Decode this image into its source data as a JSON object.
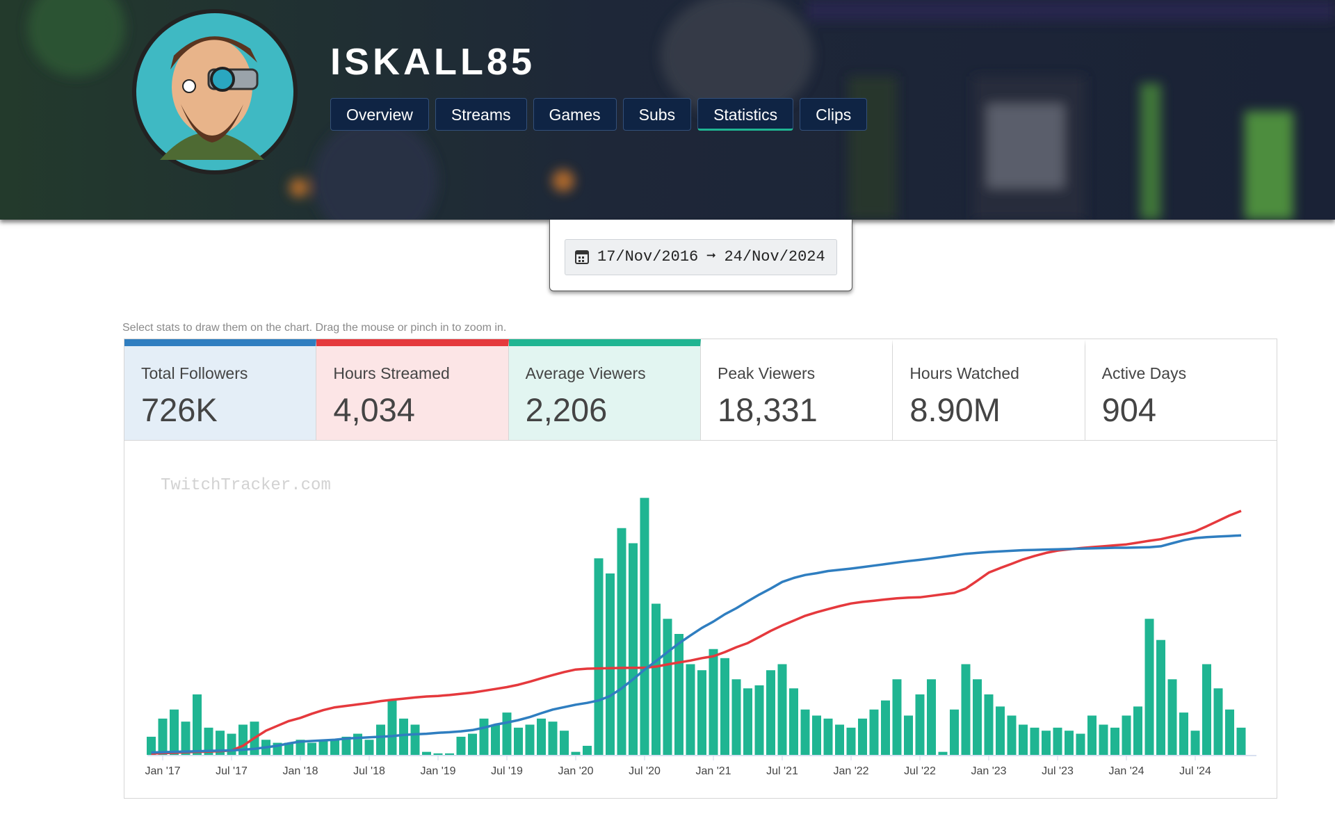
{
  "header": {
    "title": "ISKALL85",
    "tabs": [
      "Overview",
      "Streams",
      "Games",
      "Subs",
      "Statistics",
      "Clips"
    ],
    "active_tab": 4
  },
  "date_range": {
    "start": "17/Nov/2016",
    "arrow": "➞",
    "end": "24/Nov/2024"
  },
  "hint": "Select stats to draw them on the chart. Drag the mouse or pinch in to zoom in.",
  "stats": [
    {
      "label": "Total Followers",
      "value": "726K",
      "color": "#2f7ec0"
    },
    {
      "label": "Hours Streamed",
      "value": "4,034",
      "color": "#e5393d"
    },
    {
      "label": "Average Viewers",
      "value": "2,206",
      "color": "#1fb592"
    },
    {
      "label": "Peak Viewers",
      "value": "18,331"
    },
    {
      "label": "Hours Watched",
      "value": "8.90M"
    },
    {
      "label": "Active Days",
      "value": "904"
    }
  ],
  "chart_data": {
    "type": "combo",
    "watermark": "TwitchTracker.com",
    "x": [
      "2016-12",
      "2017-01",
      "2017-02",
      "2017-03",
      "2017-04",
      "2017-05",
      "2017-06",
      "2017-07",
      "2017-08",
      "2017-09",
      "2017-10",
      "2017-11",
      "2017-12",
      "2018-01",
      "2018-02",
      "2018-03",
      "2018-04",
      "2018-05",
      "2018-06",
      "2018-07",
      "2018-08",
      "2018-09",
      "2018-10",
      "2018-11",
      "2018-12",
      "2019-01",
      "2019-02",
      "2019-03",
      "2019-04",
      "2019-05",
      "2019-06",
      "2019-07",
      "2019-08",
      "2019-09",
      "2019-10",
      "2019-11",
      "2019-12",
      "2020-01",
      "2020-02",
      "2020-03",
      "2020-04",
      "2020-05",
      "2020-06",
      "2020-07",
      "2020-08",
      "2020-09",
      "2020-10",
      "2020-11",
      "2020-12",
      "2021-01",
      "2021-02",
      "2021-03",
      "2021-04",
      "2021-05",
      "2021-06",
      "2021-07",
      "2021-08",
      "2021-09",
      "2021-10",
      "2021-11",
      "2021-12",
      "2022-01",
      "2022-02",
      "2022-03",
      "2022-04",
      "2022-05",
      "2022-06",
      "2022-07",
      "2022-08",
      "2022-09",
      "2022-10",
      "2022-11",
      "2022-12",
      "2023-01",
      "2023-02",
      "2023-03",
      "2023-04",
      "2023-05",
      "2023-06",
      "2023-07",
      "2023-08",
      "2023-09",
      "2023-10",
      "2023-11",
      "2023-12",
      "2024-01",
      "2024-02",
      "2024-03",
      "2024-04",
      "2024-05",
      "2024-06",
      "2024-07",
      "2024-08",
      "2024-09",
      "2024-10",
      "2024-11"
    ],
    "xticks": [
      {
        "value": "2017-01",
        "label": "Jan '17"
      },
      {
        "value": "2017-07",
        "label": "Jul '17"
      },
      {
        "value": "2018-01",
        "label": "Jan '18"
      },
      {
        "value": "2018-07",
        "label": "Jul '18"
      },
      {
        "value": "2019-01",
        "label": "Jan '19"
      },
      {
        "value": "2019-07",
        "label": "Jul '19"
      },
      {
        "value": "2020-01",
        "label": "Jan '20"
      },
      {
        "value": "2020-07",
        "label": "Jul '20"
      },
      {
        "value": "2021-01",
        "label": "Jan '21"
      },
      {
        "value": "2021-07",
        "label": "Jul '21"
      },
      {
        "value": "2022-01",
        "label": "Jan '22"
      },
      {
        "value": "2022-07",
        "label": "Jul '22"
      },
      {
        "value": "2023-01",
        "label": "Jan '23"
      },
      {
        "value": "2023-07",
        "label": "Jul '23"
      },
      {
        "value": "2024-01",
        "label": "Jan '24"
      },
      {
        "value": "2024-07",
        "label": "Jul '24"
      }
    ],
    "series": [
      {
        "name": "Average Viewers",
        "type": "bar",
        "color": "#1fb592",
        "ylim": [
          0,
          10000
        ],
        "values": [
          600,
          1200,
          1500,
          1100,
          2000,
          900,
          800,
          700,
          1000,
          1100,
          500,
          400,
          400,
          500,
          400,
          450,
          500,
          600,
          700,
          500,
          1000,
          1800,
          1200,
          1000,
          100,
          50,
          50,
          600,
          700,
          1200,
          1000,
          1400,
          900,
          1000,
          1200,
          1100,
          800,
          100,
          300,
          6500,
          6000,
          7500,
          7000,
          8500,
          5000,
          4500,
          4000,
          3000,
          2800,
          3500,
          3200,
          2500,
          2200,
          2300,
          2800,
          3000,
          2200,
          1500,
          1300,
          1200,
          1000,
          900,
          1200,
          1500,
          1800,
          2500,
          1300,
          2000,
          2500,
          100,
          1500,
          3000,
          2500,
          2000,
          1600,
          1300,
          1000,
          900,
          800,
          900,
          800,
          700,
          1300,
          1000,
          900,
          1300,
          1600,
          4500,
          3800,
          2500,
          1400,
          800,
          3000,
          2200,
          1500,
          900
        ]
      },
      {
        "name": "Hours Streamed",
        "type": "line",
        "color": "#e5393d",
        "ylim": [
          0,
          5000
        ],
        "values": [
          20,
          30,
          35,
          45,
          50,
          55,
          62,
          73,
          150,
          280,
          400,
          480,
          560,
          611,
          680,
          740,
          786,
          810,
          835,
          859,
          890,
          910,
          930,
          950,
          965,
          975,
          990,
          1010,
          1030,
          1060,
          1090,
          1121,
          1160,
          1210,
          1267,
          1320,
          1370,
          1412,
          1425,
          1430,
          1435,
          1438,
          1440,
          1441,
          1460,
          1495,
          1529,
          1560,
          1600,
          1631,
          1700,
          1780,
          1849,
          1950,
          2050,
          2140,
          2220,
          2300,
          2359,
          2410,
          2460,
          2504,
          2530,
          2550,
          2570,
          2590,
          2600,
          2606,
          2630,
          2655,
          2679,
          2750,
          2880,
          3014,
          3090,
          3160,
          3232,
          3290,
          3340,
          3378,
          3400,
          3420,
          3436,
          3450,
          3465,
          3480,
          3510,
          3540,
          3567,
          3610,
          3650,
          3698,
          3780,
          3870,
          3960,
          4034
        ]
      },
      {
        "name": "Total Followers",
        "type": "line",
        "color": "#2f7ec0",
        "ylim": [
          0,
          1000
        ],
        "values": [
          8,
          9,
          10,
          11,
          12,
          13,
          14,
          15,
          17,
          20,
          25,
          30,
          38,
          44,
          46,
          48,
          50,
          54,
          56,
          58,
          60,
          62,
          66,
          68,
          70,
          73,
          75,
          78,
          82,
          90,
          100,
          107,
          115,
          125,
          138,
          150,
          158,
          166,
          172,
          180,
          195,
          220,
          250,
          282,
          310,
          340,
          369,
          395,
          420,
          441,
          465,
          485,
          508,
          530,
          550,
          572,
          585,
          595,
          601,
          608,
          612,
          616,
          621,
          626,
          631,
          636,
          641,
          645,
          650,
          655,
          660,
          665,
          668,
          671,
          673,
          675,
          677,
          678,
          679,
          680,
          681,
          682,
          683,
          684,
          685,
          685,
          686,
          687,
          690,
          700,
          710,
          717,
          720,
          722,
          724,
          726
        ]
      }
    ]
  }
}
